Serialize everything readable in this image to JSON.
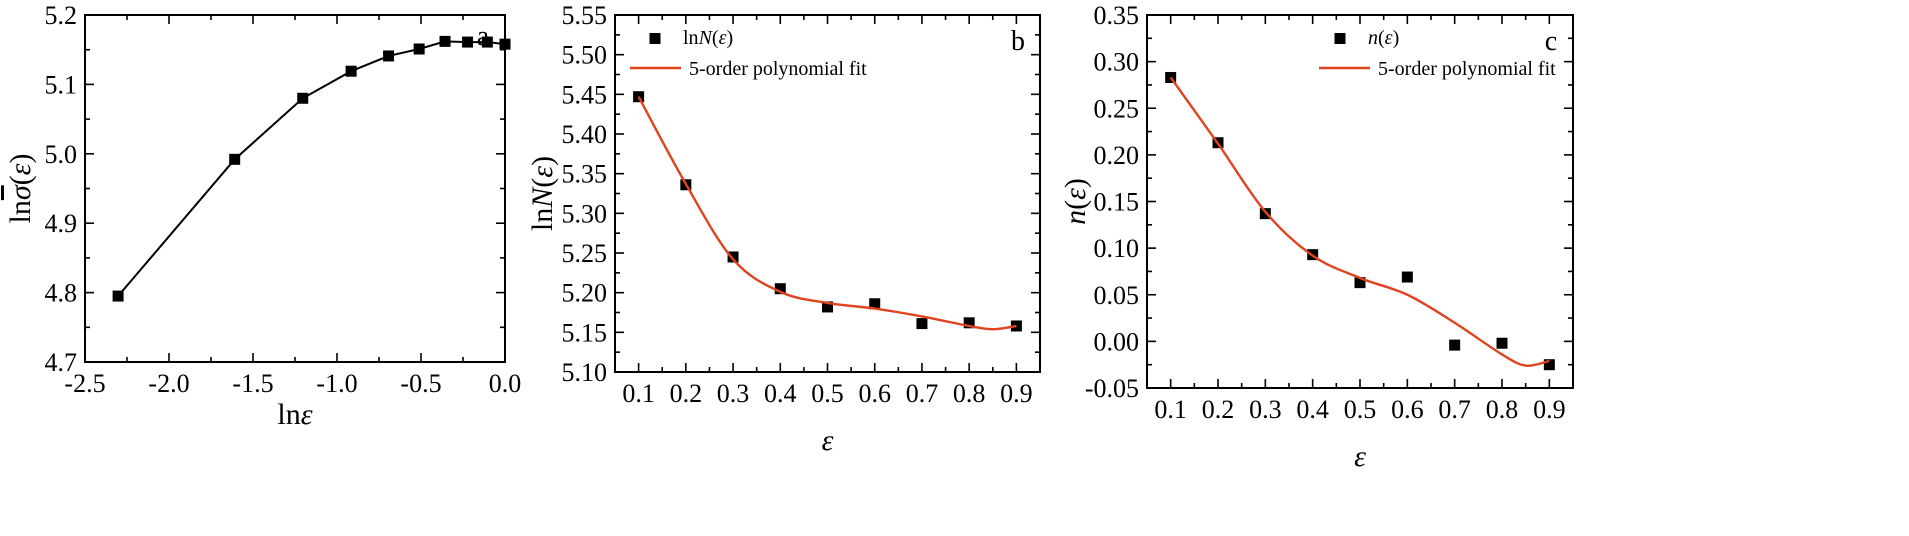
{
  "colors": {
    "fit_line": "#e0431e",
    "data": "#000000",
    "axes": "#000000"
  },
  "chart_data": [
    {
      "type": "line",
      "panel_label": "a",
      "xlabel": "lnε",
      "ylabel": "lnσ̄(ε)",
      "xlim": [
        -2.5,
        0.0
      ],
      "ylim": [
        4.7,
        5.2
      ],
      "xticks": [
        -2.5,
        -2.0,
        -1.5,
        -1.0,
        -0.5,
        0.0
      ],
      "xtick_labels": [
        "-2.5",
        "-2.0",
        "-1.5",
        "-1.0",
        "-0.5",
        "0.0"
      ],
      "yticks": [
        4.7,
        4.8,
        4.9,
        5.0,
        5.1,
        5.2
      ],
      "ytick_labels": [
        "4.7",
        "4.8",
        "4.9",
        "5.0",
        "5.1",
        "5.2"
      ],
      "series": [
        {
          "x": [
            -2.303,
            -1.609,
            -1.204,
            -0.916,
            -0.693,
            -0.511,
            -0.357,
            -0.223,
            -0.105,
            0.0
          ],
          "y": [
            4.795,
            4.992,
            5.08,
            5.119,
            5.141,
            5.151,
            5.162,
            5.161,
            5.161,
            5.158
          ]
        }
      ],
      "grid": false
    },
    {
      "type": "scatter",
      "panel_label": "b",
      "xlabel": "ε",
      "ylabel": "lnN(ε)",
      "xlim": [
        0.05,
        0.95
      ],
      "ylim": [
        5.1,
        5.55
      ],
      "xticks": [
        0.1,
        0.2,
        0.3,
        0.4,
        0.5,
        0.6,
        0.7,
        0.8,
        0.9
      ],
      "xtick_labels": [
        "0.1",
        "0.2",
        "0.3",
        "0.4",
        "0.5",
        "0.6",
        "0.7",
        "0.8",
        "0.9"
      ],
      "yticks": [
        5.1,
        5.15,
        5.2,
        5.25,
        5.3,
        5.35,
        5.4,
        5.45,
        5.5,
        5.55
      ],
      "ytick_labels": [
        "5.10",
        "5.15",
        "5.20",
        "5.25",
        "5.30",
        "5.35",
        "5.40",
        "5.45",
        "5.50",
        "5.55"
      ],
      "series": [
        {
          "name": "lnN(ε)",
          "x": [
            0.1,
            0.2,
            0.3,
            0.4,
            0.5,
            0.6,
            0.7,
            0.8,
            0.9
          ],
          "y": [
            5.447,
            5.336,
            5.245,
            5.205,
            5.182,
            5.186,
            5.161,
            5.162,
            5.158
          ]
        },
        {
          "name": "5-order polynomial fit",
          "x": [
            0.1,
            0.2,
            0.3,
            0.4,
            0.5,
            0.6,
            0.7,
            0.8,
            0.85,
            0.9
          ],
          "y": [
            5.447,
            5.337,
            5.242,
            5.201,
            5.187,
            5.18,
            5.17,
            5.158,
            5.154,
            5.158
          ]
        }
      ],
      "legend_position": "top-left",
      "grid": false
    },
    {
      "type": "scatter",
      "panel_label": "c",
      "xlabel": "ε",
      "ylabel": "n(ε)",
      "xlim": [
        0.05,
        0.95
      ],
      "ylim": [
        -0.05,
        0.35
      ],
      "xticks": [
        0.1,
        0.2,
        0.3,
        0.4,
        0.5,
        0.6,
        0.7,
        0.8,
        0.9
      ],
      "xtick_labels": [
        "0.1",
        "0.2",
        "0.3",
        "0.4",
        "0.5",
        "0.6",
        "0.7",
        "0.8",
        "0.9"
      ],
      "yticks": [
        -0.05,
        0.0,
        0.05,
        0.1,
        0.15,
        0.2,
        0.25,
        0.3,
        0.35
      ],
      "ytick_labels": [
        "-0.05",
        "0.00",
        "0.05",
        "0.10",
        "0.15",
        "0.20",
        "0.25",
        "0.30",
        "0.35"
      ],
      "series": [
        {
          "name": "n(ε)",
          "x": [
            0.1,
            0.2,
            0.3,
            0.4,
            0.5,
            0.6,
            0.7,
            0.8,
            0.9
          ],
          "y": [
            0.283,
            0.213,
            0.137,
            0.093,
            0.063,
            0.069,
            -0.004,
            -0.002,
            -0.025
          ]
        },
        {
          "name": "5-order polynomial fit",
          "x": [
            0.1,
            0.2,
            0.3,
            0.4,
            0.5,
            0.6,
            0.7,
            0.8,
            0.85,
            0.9
          ],
          "y": [
            0.283,
            0.212,
            0.139,
            0.092,
            0.068,
            0.05,
            0.02,
            -0.014,
            -0.026,
            -0.021
          ]
        }
      ],
      "legend_position": "top-center",
      "grid": false
    }
  ]
}
